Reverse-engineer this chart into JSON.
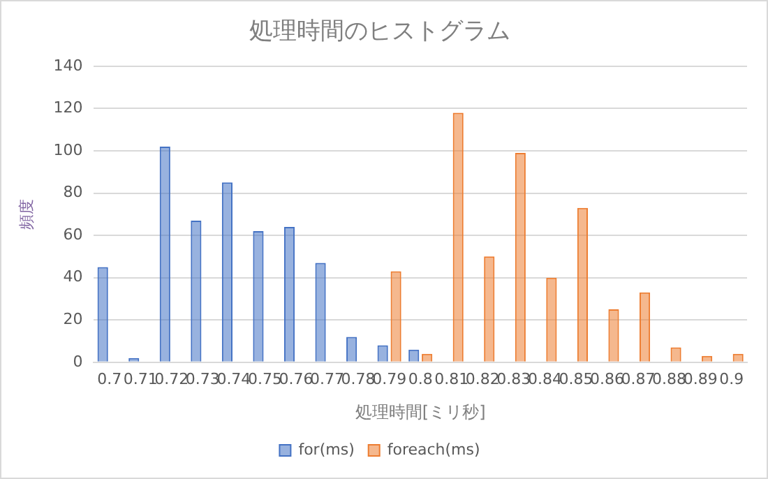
{
  "chart_data": {
    "type": "bar",
    "title": "処理時間のヒストグラム",
    "xlabel": "処理時間[ミリ秒]",
    "ylabel": "頻度",
    "categories": [
      "0.7",
      "0.71",
      "0.72",
      "0.73",
      "0.74",
      "0.75",
      "0.76",
      "0.77",
      "0.78",
      "0.79",
      "0.8",
      "0.81",
      "0.82",
      "0.83",
      "0.84",
      "0.85",
      "0.86",
      "0.87",
      "0.88",
      "0.89",
      "0.9"
    ],
    "series": [
      {
        "name": "for(ms)",
        "color": "#4472c4",
        "values": [
          45,
          2,
          102,
          67,
          85,
          62,
          64,
          47,
          12,
          8,
          6,
          0,
          0,
          0,
          0,
          0,
          0,
          0,
          0,
          0,
          0
        ]
      },
      {
        "name": "foreach(ms)",
        "color": "#ed7d31",
        "values": [
          0,
          0,
          0,
          0,
          0,
          0,
          0,
          0,
          0,
          43,
          4,
          118,
          50,
          99,
          40,
          73,
          25,
          33,
          7,
          3,
          4
        ]
      }
    ],
    "ylim": [
      0,
      140
    ],
    "yticks": [
      0,
      20,
      40,
      60,
      80,
      100,
      120,
      140
    ],
    "grid": "y",
    "legend": "bottom"
  }
}
